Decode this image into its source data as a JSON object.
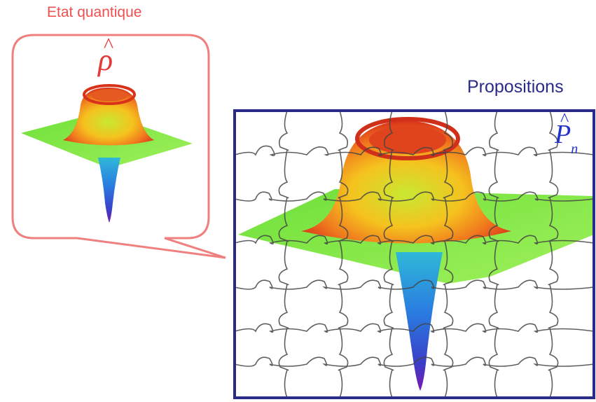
{
  "labels": {
    "quantum_state": "Etat quantique",
    "propositions": "Propositions"
  },
  "symbols": {
    "rho": "ρ",
    "rho_hat": "^",
    "p": "P",
    "p_hat": "^",
    "p_sub": "n"
  },
  "colors": {
    "bubble_stroke": "#f08080",
    "frame_stroke": "#2a2a88",
    "plane_green": "#7de84a",
    "peak_red": "#e8401c",
    "peak_orange": "#f59b1e",
    "funnel_blue": "#2a7ae0",
    "funnel_purple": "#6a1fb0",
    "puzzle_line": "#444444"
  }
}
